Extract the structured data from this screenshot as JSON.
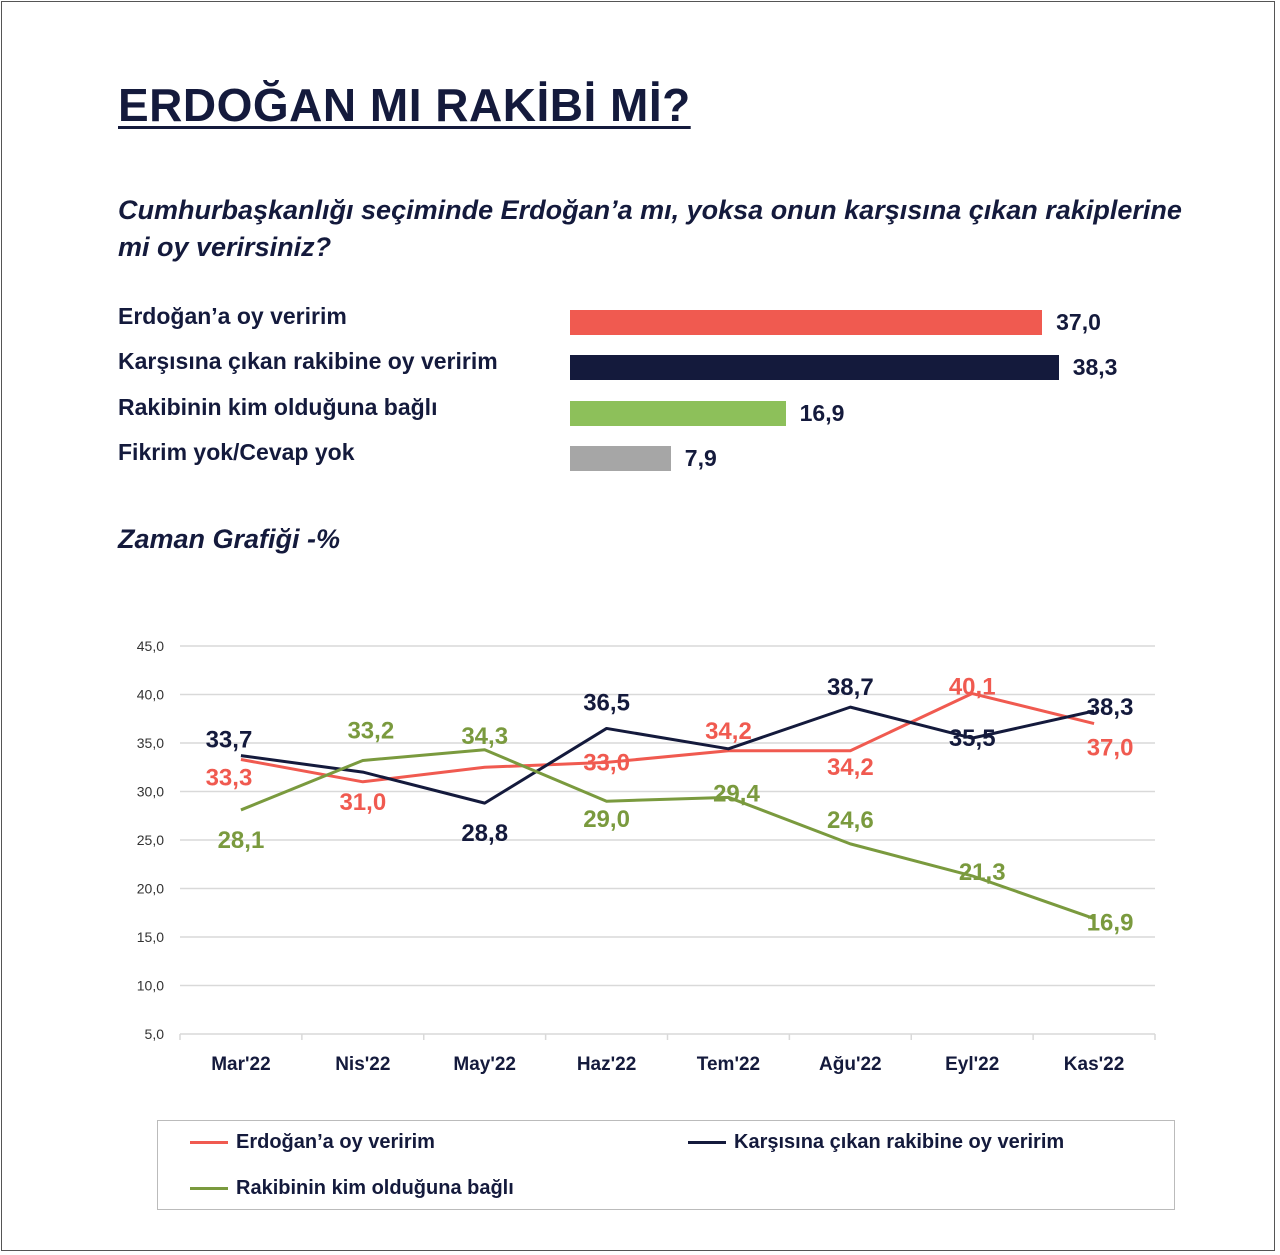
{
  "title": "ERDOĞAN MI RAKİBİ Mİ?",
  "subtitle": "Cumhurbaşkanlığı seçiminde Erdoğan’a mı, yoksa onun karşısına çıkan rakiplerine mi oy verirsiniz?",
  "section_title": "Zaman Grafiği -%",
  "colors": {
    "erdogan": "#f05a50",
    "rakip": "#141a3c",
    "bagli": "#7a9a3e",
    "fikrim_yok": "#a6a6a6"
  },
  "chart_data": [
    {
      "type": "bar",
      "orientation": "horizontal",
      "categories": [
        "Erdoğan’a oy veririm",
        "Karşısına çıkan rakibine oy veririm",
        "Rakibinin kim olduğuna bağlı",
        "Fikrim yok/Cevap yok"
      ],
      "values": [
        37.0,
        38.3,
        16.9,
        7.9
      ],
      "value_labels": [
        "37,0",
        "38,3",
        "16,9",
        "7,9"
      ],
      "colors": [
        "#f05a50",
        "#141a3c",
        "#8dc05a",
        "#a6a6a6"
      ]
    },
    {
      "type": "line",
      "categories": [
        "Mar'22",
        "Nis'22",
        "May'22",
        "Haz'22",
        "Tem'22",
        "Ağu'22",
        "Eyl'22",
        "Kas'22"
      ],
      "ylim": [
        5,
        45
      ],
      "yticks": [
        "5,0",
        "10,0",
        "15,0",
        "20,0",
        "25,0",
        "30,0",
        "35,0",
        "40,0",
        "45,0"
      ],
      "grid": true,
      "legend_position": "bottom",
      "series": [
        {
          "name": "Erdoğan’a oy veririm",
          "color": "#f05a50",
          "values": [
            33.3,
            31.0,
            32.5,
            33.0,
            34.2,
            34.2,
            40.1,
            37.0
          ],
          "labels": [
            "33,3",
            "31,0",
            "",
            "33,0",
            "34,2",
            "34,2",
            "40,1",
            "37,0"
          ]
        },
        {
          "name": "Karşısına çıkan rakibine oy veririm",
          "color": "#141a3c",
          "values": [
            33.7,
            32.0,
            28.8,
            36.5,
            34.4,
            38.7,
            35.5,
            38.3
          ],
          "labels": [
            "33,7",
            "",
            "28,8",
            "36,5",
            "",
            "38,7",
            "35,5",
            "38,3"
          ]
        },
        {
          "name": "Rakibinin kim olduğuna bağlı",
          "color": "#7a9a3e",
          "values": [
            28.1,
            33.2,
            34.3,
            29.0,
            29.4,
            24.6,
            21.3,
            16.9
          ],
          "labels": [
            "28,1",
            "33,2",
            "34,3",
            "29,0",
            "29,4",
            "24,6",
            "21,3",
            "16,9"
          ]
        }
      ]
    }
  ]
}
